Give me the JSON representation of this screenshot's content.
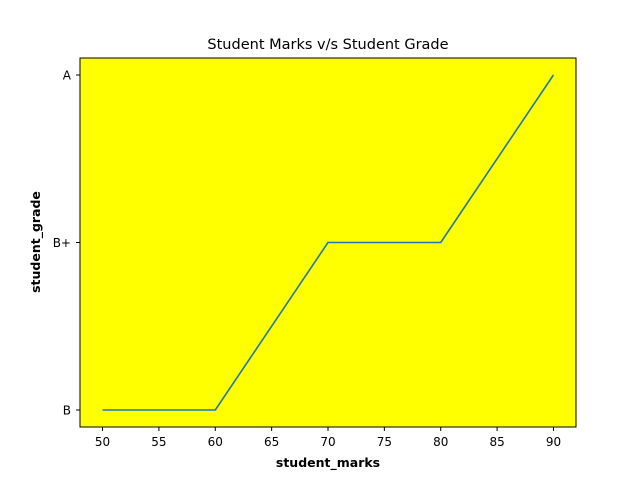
{
  "chart_data": {
    "type": "line",
    "title": "Student Marks v/s Student Grade",
    "xlabel": "student_marks",
    "ylabel": "student_grade",
    "x": [
      50,
      60,
      70,
      80,
      90
    ],
    "categories_y": [
      "B",
      "B+",
      "A"
    ],
    "series": [
      {
        "y": [
          "B",
          "B",
          "B+",
          "B+",
          "A"
        ],
        "color": "#1f77b4"
      }
    ],
    "xticks": [
      50,
      55,
      60,
      65,
      70,
      75,
      80,
      85,
      90
    ],
    "xlim": [
      48,
      92
    ],
    "grid": false,
    "plot_background": "#ffff00"
  }
}
